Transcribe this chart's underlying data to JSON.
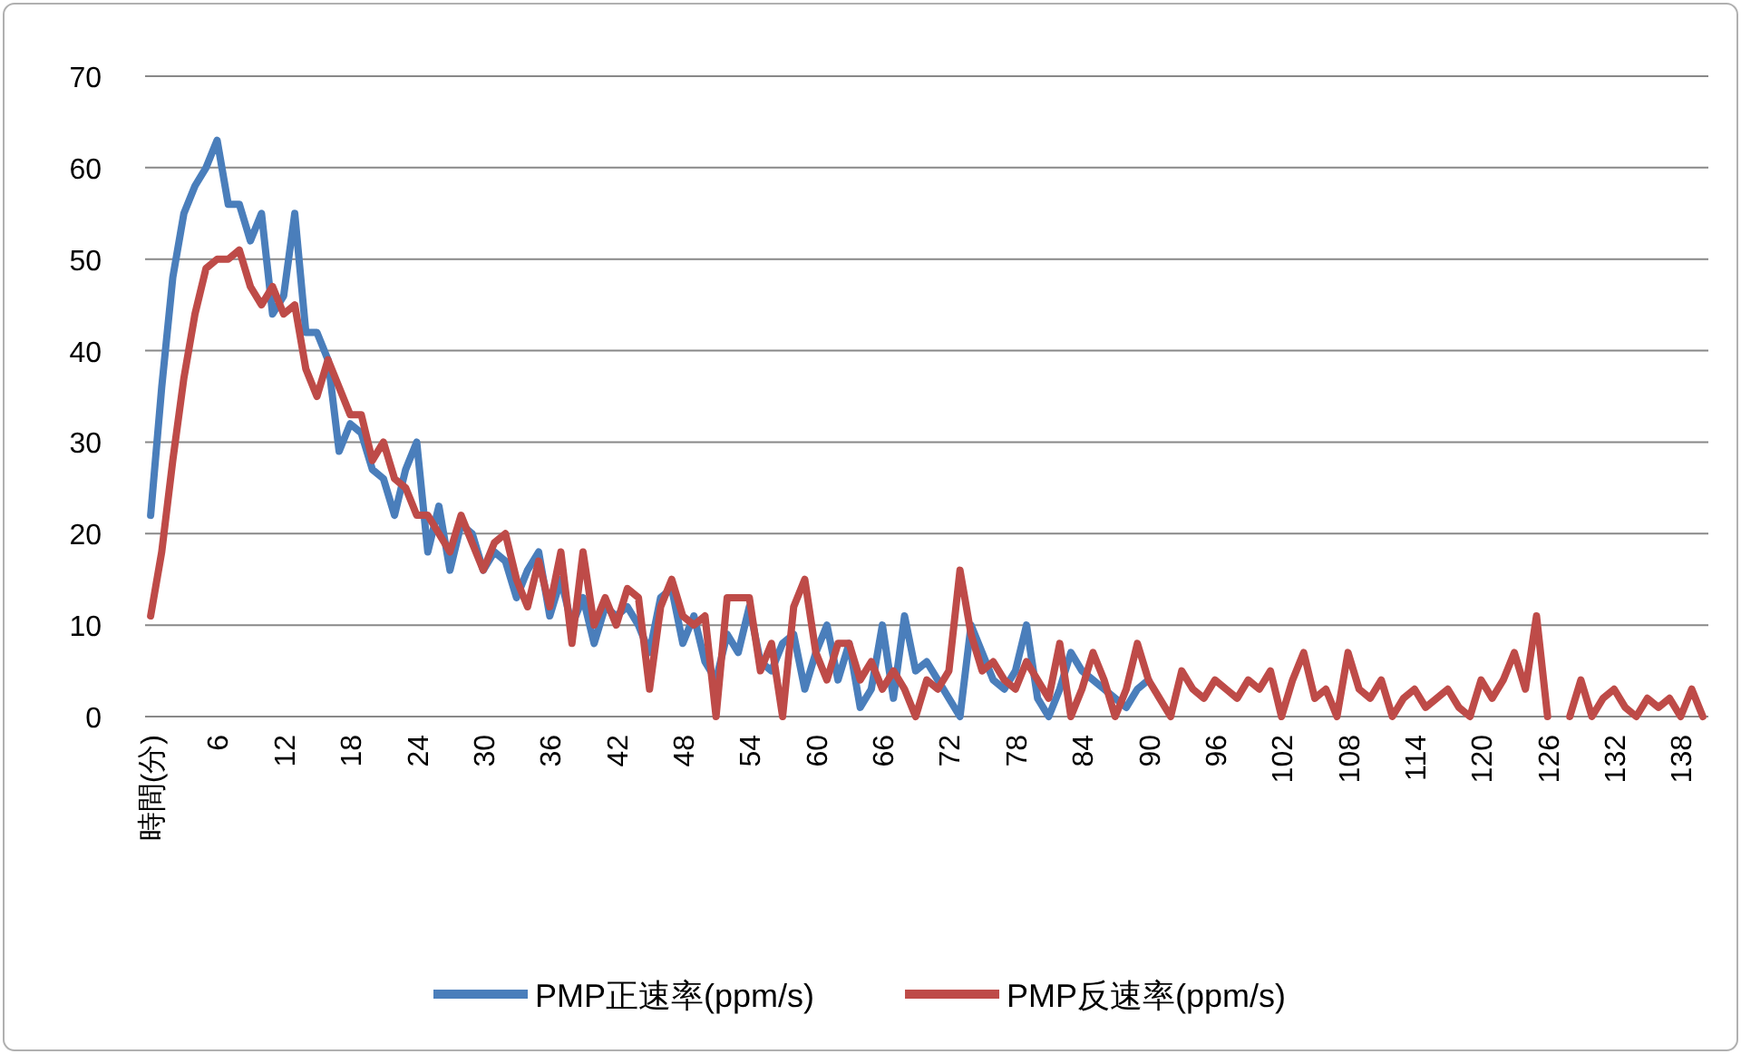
{
  "chart_data": {
    "type": "line",
    "categories": [
      "時間(分)",
      null,
      null,
      null,
      null,
      null,
      "6",
      null,
      null,
      null,
      null,
      null,
      "12",
      null,
      null,
      null,
      null,
      null,
      "18",
      null,
      null,
      null,
      null,
      null,
      "24",
      null,
      null,
      null,
      null,
      null,
      "30",
      null,
      null,
      null,
      null,
      null,
      "36",
      null,
      null,
      null,
      null,
      null,
      "42",
      null,
      null,
      null,
      null,
      null,
      "48",
      null,
      null,
      null,
      null,
      null,
      "54",
      null,
      null,
      null,
      null,
      null,
      "60",
      null,
      null,
      null,
      null,
      null,
      "66",
      null,
      null,
      null,
      null,
      null,
      "72",
      null,
      null,
      null,
      null,
      null,
      "78",
      null,
      null,
      null,
      null,
      null,
      "84",
      null,
      null,
      null,
      null,
      null,
      "90",
      null,
      null,
      null,
      null,
      null,
      "96",
      null,
      null,
      null,
      null,
      null,
      "102",
      null,
      null,
      null,
      null,
      null,
      "108",
      null,
      null,
      null,
      null,
      null,
      "114",
      null,
      null,
      null,
      null,
      null,
      "120",
      null,
      null,
      null,
      null,
      null,
      "126",
      null,
      null,
      null,
      null,
      null,
      "132",
      null,
      null,
      null,
      null,
      null,
      "138",
      null,
      null
    ],
    "series": [
      {
        "name": "PMP正速率(ppm/s)",
        "color": "#4a7ebb",
        "values": [
          22,
          36,
          48,
          55,
          58,
          60,
          63,
          56,
          56,
          52,
          55,
          44,
          46,
          55,
          42,
          42,
          39,
          29,
          32,
          31,
          27,
          26,
          22,
          27,
          30,
          18,
          23,
          16,
          21,
          20,
          16,
          18,
          17,
          13,
          16,
          18,
          11,
          15,
          10,
          13,
          8,
          12,
          11,
          12,
          10,
          7,
          13,
          14,
          8,
          11,
          6,
          4,
          9,
          7,
          12,
          6,
          5,
          8,
          9,
          3,
          7,
          10,
          4,
          8,
          1,
          3,
          10,
          2,
          11,
          5,
          6,
          4,
          2,
          0,
          10,
          7,
          4,
          3,
          5,
          10,
          2,
          0,
          3,
          7,
          5,
          4,
          3,
          2,
          1,
          3,
          4,
          null,
          null,
          null,
          null,
          null,
          null,
          null,
          null,
          null,
          null,
          null,
          null,
          null,
          null,
          null,
          null,
          null,
          null,
          null,
          null,
          null,
          null,
          null,
          null,
          null,
          null,
          null,
          null,
          null,
          null,
          null,
          null,
          null,
          null,
          null,
          null,
          null,
          null,
          null,
          null,
          null,
          null,
          null,
          null,
          null,
          null,
          null,
          null,
          null,
          null
        ]
      },
      {
        "name": "PMP反速率(ppm/s)",
        "color": "#be4b48",
        "values": [
          11,
          18,
          28,
          37,
          44,
          49,
          50,
          50,
          51,
          47,
          45,
          47,
          44,
          45,
          38,
          35,
          39,
          36,
          33,
          33,
          28,
          30,
          26,
          25,
          22,
          22,
          20,
          18,
          22,
          19,
          16,
          19,
          20,
          15,
          12,
          17,
          12,
          18,
          8,
          18,
          10,
          13,
          10,
          14,
          13,
          3,
          12,
          15,
          11,
          10,
          11,
          0,
          13,
          13,
          13,
          5,
          8,
          0,
          12,
          15,
          7,
          4,
          8,
          8,
          4,
          6,
          3,
          5,
          3,
          0,
          4,
          3,
          5,
          16,
          9,
          5,
          6,
          4,
          3,
          6,
          4,
          2,
          8,
          0,
          3,
          7,
          4,
          0,
          3,
          8,
          4,
          2,
          0,
          5,
          3,
          2,
          4,
          3,
          2,
          4,
          3,
          5,
          0,
          4,
          7,
          2,
          3,
          0,
          7,
          3,
          2,
          4,
          0,
          2,
          3,
          1,
          2,
          3,
          1,
          0,
          4,
          2,
          4,
          7,
          3,
          11,
          0,
          null,
          0,
          4,
          0,
          2,
          3,
          1,
          0,
          2,
          1,
          2,
          0,
          3,
          0
        ]
      }
    ],
    "ylim": [
      0,
      70
    ],
    "yticks": [
      0,
      10,
      20,
      30,
      40,
      50,
      60,
      70
    ],
    "grid": "y",
    "legend": "bottom"
  }
}
